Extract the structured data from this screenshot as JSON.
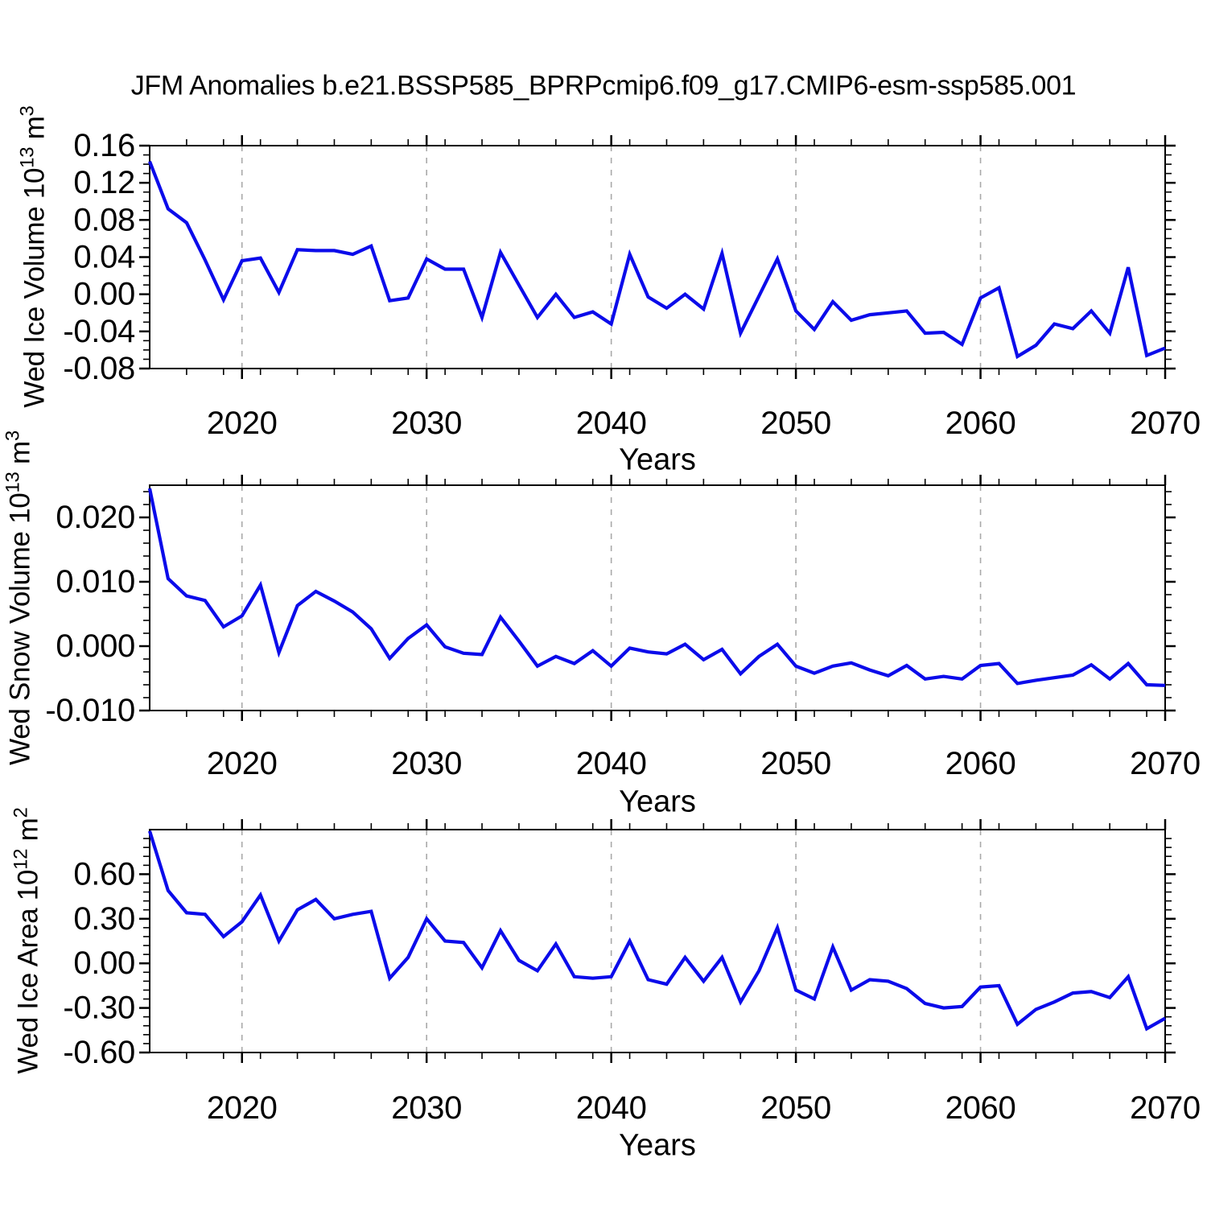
{
  "title": "JFM Anomalies b.e21.BSSP585_BPRPcmip6.f09_g17.CMIP6-esm-ssp585.001",
  "x_axis": {
    "label": "Years",
    "range": [
      2015,
      2070
    ],
    "tick_years": [
      2020,
      2030,
      2040,
      2050,
      2060,
      2070
    ],
    "tick_labels": [
      "2020",
      "2030",
      "2040",
      "2050",
      "2060",
      "2070"
    ],
    "minor_interval": 2,
    "grid_years": [
      2020,
      2030,
      2040,
      2050,
      2060
    ]
  },
  "style": {
    "line_color": "#0b0bea",
    "grid_color": "#a9a9a9",
    "axis_color": "#000000",
    "background": "#ffffff"
  },
  "chart_data": [
    {
      "type": "line",
      "name": "wed-ice-volume-anomaly",
      "ylabel": {
        "p1": "Wed Ice Volume 10",
        "e1": "13",
        "p2": " m",
        "e2": "3"
      },
      "ylim": [
        -0.08,
        0.16
      ],
      "ytick_values": [
        0.16,
        0.12,
        0.08,
        0.04,
        0.0,
        -0.04,
        -0.08
      ],
      "ytick_labels": [
        "0.16",
        "0.12",
        "0.08",
        "0.04",
        "0.00",
        "-0.04",
        "-0.08"
      ],
      "yminor_interval": 0.01,
      "x": [
        2015,
        2016,
        2017,
        2018,
        2019,
        2020,
        2021,
        2022,
        2023,
        2024,
        2025,
        2026,
        2027,
        2028,
        2029,
        2030,
        2031,
        2032,
        2033,
        2034,
        2035,
        2036,
        2037,
        2038,
        2039,
        2040,
        2041,
        2042,
        2043,
        2044,
        2045,
        2046,
        2047,
        2048,
        2049,
        2050,
        2051,
        2052,
        2053,
        2054,
        2055,
        2056,
        2057,
        2058,
        2059,
        2060,
        2061,
        2062,
        2063,
        2064,
        2065,
        2066,
        2067,
        2068,
        2069,
        2070
      ],
      "values": [
        0.143,
        0.092,
        0.077,
        0.037,
        -0.006,
        0.036,
        0.039,
        0.002,
        0.048,
        0.047,
        0.047,
        0.043,
        0.052,
        -0.007,
        -0.004,
        0.038,
        0.027,
        0.027,
        -0.025,
        0.045,
        0.01,
        -0.025,
        0.0,
        -0.025,
        -0.019,
        -0.032,
        0.043,
        -0.003,
        -0.015,
        0.0,
        -0.016,
        0.044,
        -0.042,
        -0.002,
        0.038,
        -0.018,
        -0.038,
        -0.008,
        -0.028,
        -0.022,
        -0.02,
        -0.018,
        -0.042,
        -0.041,
        -0.054,
        -0.004,
        0.007,
        -0.067,
        -0.055,
        -0.032,
        -0.037,
        -0.018,
        -0.042,
        0.029,
        -0.066,
        -0.058
      ]
    },
    {
      "type": "line",
      "name": "wed-snow-volume-anomaly",
      "ylabel": {
        "p1": "Wed Snow Volume 10",
        "e1": "13",
        "p2": " m",
        "e2": "3"
      },
      "ylim": [
        -0.01,
        0.025
      ],
      "ytick_values": [
        0.02,
        0.01,
        0.0,
        -0.01
      ],
      "ytick_labels": [
        "0.020",
        "0.010",
        "0.000",
        "-0.010"
      ],
      "yminor_interval": 0.002,
      "x": [
        2015,
        2016,
        2017,
        2018,
        2019,
        2020,
        2021,
        2022,
        2023,
        2024,
        2025,
        2026,
        2027,
        2028,
        2029,
        2030,
        2031,
        2032,
        2033,
        2034,
        2035,
        2036,
        2037,
        2038,
        2039,
        2040,
        2041,
        2042,
        2043,
        2044,
        2045,
        2046,
        2047,
        2048,
        2049,
        2050,
        2051,
        2052,
        2053,
        2054,
        2055,
        2056,
        2057,
        2058,
        2059,
        2060,
        2061,
        2062,
        2063,
        2064,
        2065,
        2066,
        2067,
        2068,
        2069,
        2070
      ],
      "values": [
        0.0245,
        0.0105,
        0.0078,
        0.0071,
        0.003,
        0.0047,
        0.0095,
        -0.001,
        0.0063,
        0.0085,
        0.007,
        0.0053,
        0.0027,
        -0.0019,
        0.0012,
        0.0033,
        -0.0001,
        -0.0011,
        -0.0013,
        0.0045,
        0.0008,
        -0.0031,
        -0.0016,
        -0.0027,
        -0.0007,
        -0.0031,
        -0.0003,
        -0.0009,
        -0.0012,
        0.0003,
        -0.0021,
        -0.0005,
        -0.0043,
        -0.0016,
        0.0003,
        -0.0031,
        -0.0042,
        -0.0031,
        -0.0026,
        -0.0037,
        -0.0046,
        -0.003,
        -0.0051,
        -0.0047,
        -0.0051,
        -0.003,
        -0.0027,
        -0.0058,
        -0.0053,
        -0.0049,
        -0.0045,
        -0.0029,
        -0.0051,
        -0.0027,
        -0.006,
        -0.0061
      ]
    },
    {
      "type": "line",
      "name": "wed-ice-area-anomaly",
      "ylabel": {
        "p1": "Wed Ice Area 10",
        "e1": "12",
        "p2": " m",
        "e2": "2"
      },
      "ylim": [
        -0.6,
        0.9
      ],
      "ytick_values": [
        0.6,
        0.3,
        0.0,
        -0.3,
        -0.6
      ],
      "ytick_labels": [
        "0.60",
        "0.30",
        "0.00",
        "-0.30",
        "-0.60"
      ],
      "yminor_interval": 0.06,
      "x": [
        2015,
        2016,
        2017,
        2018,
        2019,
        2020,
        2021,
        2022,
        2023,
        2024,
        2025,
        2026,
        2027,
        2028,
        2029,
        2030,
        2031,
        2032,
        2033,
        2034,
        2035,
        2036,
        2037,
        2038,
        2039,
        2040,
        2041,
        2042,
        2043,
        2044,
        2045,
        2046,
        2047,
        2048,
        2049,
        2050,
        2051,
        2052,
        2053,
        2054,
        2055,
        2056,
        2057,
        2058,
        2059,
        2060,
        2061,
        2062,
        2063,
        2064,
        2065,
        2066,
        2067,
        2068,
        2069,
        2070
      ],
      "values": [
        0.89,
        0.49,
        0.34,
        0.33,
        0.18,
        0.28,
        0.46,
        0.15,
        0.36,
        0.43,
        0.3,
        0.33,
        0.35,
        -0.1,
        0.04,
        0.3,
        0.15,
        0.14,
        -0.03,
        0.22,
        0.02,
        -0.05,
        0.13,
        -0.09,
        -0.1,
        -0.09,
        0.15,
        -0.11,
        -0.14,
        0.04,
        -0.12,
        0.04,
        -0.26,
        -0.05,
        0.24,
        -0.18,
        -0.24,
        0.11,
        -0.18,
        -0.11,
        -0.12,
        -0.17,
        -0.27,
        -0.3,
        -0.29,
        -0.16,
        -0.15,
        -0.41,
        -0.31,
        -0.26,
        -0.2,
        -0.19,
        -0.23,
        -0.09,
        -0.44,
        -0.37
      ]
    }
  ]
}
